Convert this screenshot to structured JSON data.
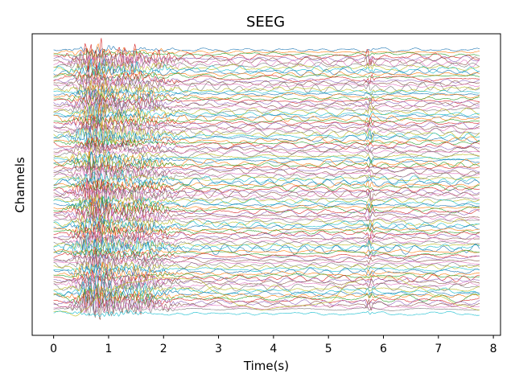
{
  "chart_data": {
    "type": "line",
    "title": "SEEG",
    "xlabel": "Time(s)",
    "ylabel": "Channels",
    "x_ticks": [
      0,
      1,
      2,
      3,
      4,
      5,
      6,
      7,
      8
    ],
    "x_tick_labels": [
      "0",
      "1",
      "2",
      "3",
      "4",
      "5",
      "6",
      "7",
      "8"
    ],
    "xlim": [
      -0.39,
      8.13
    ],
    "x_range": [
      0,
      7.75
    ],
    "y_ticks_visible": false,
    "grid": false,
    "legend": "none",
    "series_count": 120,
    "colors": [
      "#1f77b4",
      "#ff7f0e",
      "#2ca02c",
      "#d62728",
      "#9467bd",
      "#8c564b",
      "#e377c2",
      "#7f7f7f",
      "#bcbd22",
      "#17becf"
    ],
    "bursts": [
      {
        "t": 0.75,
        "width": 0.35,
        "amp": 1.0
      },
      {
        "t": 1.5,
        "width": 0.6,
        "amp": 0.6
      },
      {
        "t": 5.75,
        "width": 0.08,
        "amp": 0.5
      }
    ],
    "slow_wave": {
      "from": 0.2,
      "to": 7.75,
      "knots_t": [
        0.2,
        0.4,
        0.6,
        0.8,
        1.0,
        1.4,
        2.0,
        2.6,
        3.0,
        3.4,
        3.8,
        4.2,
        4.6,
        5.0,
        5.4,
        5.8,
        6.2,
        6.6,
        7.0,
        7.4,
        7.75
      ],
      "knots_v": [
        0.0,
        -0.3,
        0.2,
        0.9,
        1.4,
        1.9,
        2.2,
        2.1,
        1.2,
        0.4,
        0.1,
        0.3,
        0.4,
        0.6,
        1.9,
        2.3,
        2.2,
        1.6,
        1.0,
        0.4,
        0.1
      ]
    }
  }
}
